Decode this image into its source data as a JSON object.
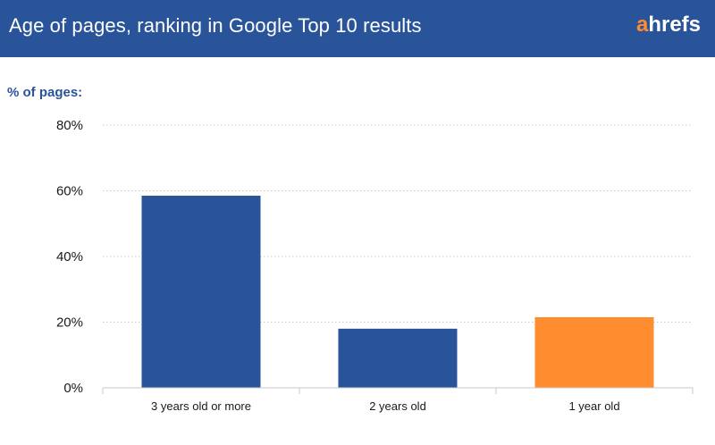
{
  "header": {
    "title": "Age of pages, ranking in Google Top 10 results",
    "logo_accent": "a",
    "logo_rest": "hrefs"
  },
  "colors": {
    "brand_blue": "#2a5499",
    "accent_orange": "#ff8c2e"
  },
  "chart_data": {
    "type": "bar",
    "ylabel": "% of pages:",
    "categories": [
      "3 years old or more",
      "2 years old",
      "1 year old"
    ],
    "values": [
      58.5,
      18,
      21.5
    ],
    "bar_colors": [
      "#2a5499",
      "#2a5499",
      "#ff8c2e"
    ],
    "ylim": [
      0,
      80
    ],
    "yticks": [
      "0%",
      "20%",
      "40%",
      "60%",
      "80%"
    ],
    "ytick_values": [
      0,
      20,
      40,
      60,
      80
    ],
    "grid": true,
    "grid_style": "dotted",
    "legend": "none"
  }
}
